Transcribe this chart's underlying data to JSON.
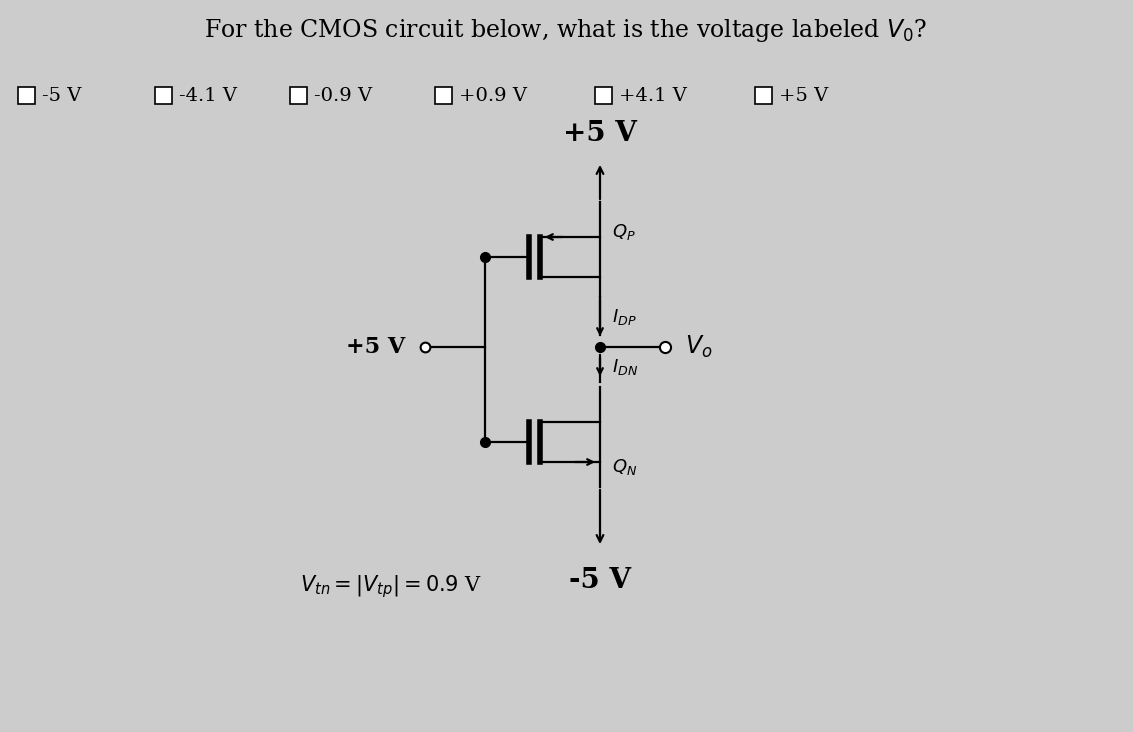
{
  "title": "For the CMOS circuit below, what is the voltage labeled $V_0$?",
  "bg_color": "#cccccc",
  "fg_color": "#000000",
  "options": [
    "-5 V",
    "-4.1 V",
    "-0.9 V",
    "+0.9 V",
    "+4.1 V",
    "+5 V"
  ]
}
